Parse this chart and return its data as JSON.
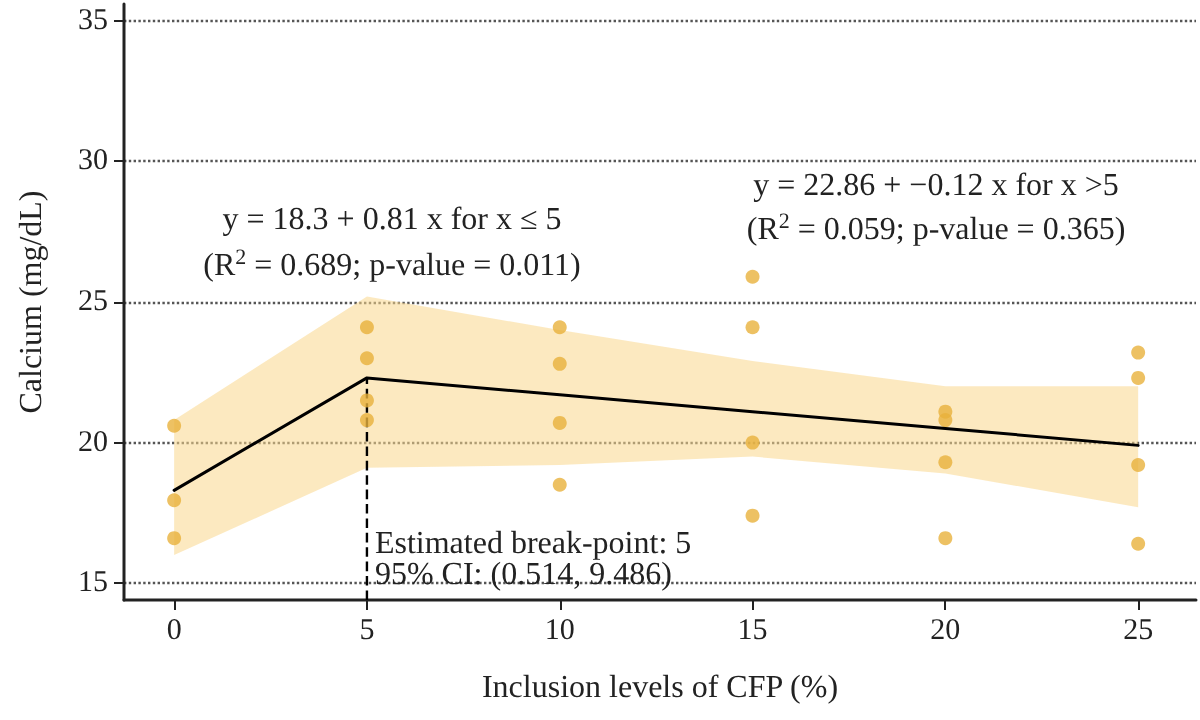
{
  "chart_data": {
    "type": "scatter",
    "xlabel": "Inclusion levels of CFP (%)",
    "ylabel": "Calcium (mg/dL)",
    "xlim": [
      -1.3,
      26.5
    ],
    "xticks": [
      0,
      5,
      10,
      15,
      20,
      25
    ],
    "ylim": [
      14.4,
      35.6
    ],
    "yticks": [
      15,
      20,
      25,
      30,
      35
    ],
    "grid": "y",
    "series": [
      {
        "color": "#e9b13c",
        "marker": "circle",
        "x": [
          0,
          0,
          0,
          5,
          5,
          5,
          5,
          10,
          10,
          10,
          10,
          15,
          15,
          15,
          15,
          20,
          20,
          20,
          20,
          25,
          25,
          25,
          25
        ],
        "values": [
          20.6,
          17.95,
          16.6,
          24.1,
          23.0,
          21.5,
          20.8,
          24.1,
          22.8,
          20.7,
          18.5,
          25.9,
          24.1,
          20.0,
          17.4,
          21.1,
          20.8,
          19.3,
          16.6,
          23.2,
          22.3,
          19.2,
          16.4
        ]
      },
      {
        "type": "line",
        "color": "#000000",
        "marker": "none",
        "line_style": "solid",
        "x": [
          0,
          5,
          10,
          15,
          20,
          25
        ],
        "values": [
          18.3,
          22.3,
          21.7,
          21.1,
          20.5,
          19.9
        ],
        "lower": [
          16.0,
          19.1,
          19.2,
          19.5,
          18.9,
          17.7
        ],
        "upper": [
          20.8,
          25.2,
          24.0,
          22.9,
          22.0,
          22.0
        ]
      }
    ],
    "ref_lines": [
      {
        "axis": "x",
        "value": 5,
        "line_style": "dashed",
        "color": "#000000"
      }
    ],
    "annotations": [
      "y = 18.3 + 0.81 x for x ≤ 5",
      "(R$^{2}$ = 0.689; p-value = 0.011)",
      "y = 22.86 + −0.12 x for x >5",
      "(R$^{2}$ = 0.059; p-value = 0.365)",
      {
        "text": "Estimated break-point: 5",
        "x": 5,
        "y": 16.4
      },
      {
        "text": "95% CI: (0.514, 9.486)",
        "x": 5,
        "y": 15.3
      }
    ]
  }
}
